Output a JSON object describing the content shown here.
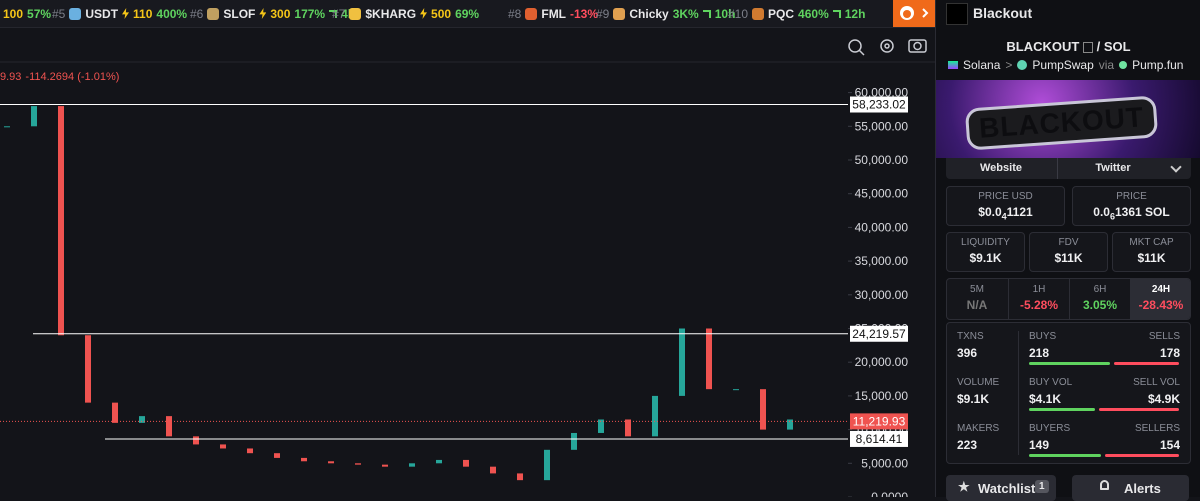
{
  "ticker": [
    {
      "boost": "100",
      "change": "57%"
    },
    {
      "rank": "#5",
      "name": "USDT",
      "boost": "110",
      "change": "400%"
    },
    {
      "rank": "#6",
      "name": "SLOF",
      "boost": "300",
      "change": "177%",
      "age": "4h"
    },
    {
      "rank": "#7",
      "name": "$KHARG",
      "boost": "500",
      "change": "69%"
    },
    {
      "rank": "#8",
      "name": "FML",
      "change": "-13%"
    },
    {
      "rank": "#9",
      "name": "Chicky",
      "change": "3K%",
      "age": "10h"
    },
    {
      "rank": "#10",
      "name": "PQC",
      "change": "460%",
      "age": "12h"
    }
  ],
  "chart": {
    "type": "candlestick",
    "legend_last": "9.93",
    "legend_change": "-114.2694 (-1.01%)",
    "ylim": [
      0,
      64540
    ],
    "yticks": [
      {
        "value": 0,
        "label": "0.0000"
      },
      {
        "value": 5000,
        "label": "5,000.00"
      },
      {
        "value": 10000,
        "label": "10,000.00"
      },
      {
        "value": 15000,
        "label": "15,000.00"
      },
      {
        "value": 20000,
        "label": "20,000.00"
      },
      {
        "value": 25000,
        "label": "25,000.00"
      },
      {
        "value": 30000,
        "label": "30,000.00"
      },
      {
        "value": 35000,
        "label": "35,000.00"
      },
      {
        "value": 40000,
        "label": "40,000.00"
      },
      {
        "value": 45000,
        "label": "45,000.00"
      },
      {
        "value": 50000,
        "label": "50,000.00"
      },
      {
        "value": 55000,
        "label": "55,000.00"
      },
      {
        "value": 60000,
        "label": "60,000.00"
      }
    ],
    "values": [
      55000,
      58000,
      24000,
      14000,
      11000,
      12000,
      9000,
      7800,
      7200,
      6500,
      5800,
      5300,
      5000,
      4800,
      4500,
      5000,
      5500,
      4500,
      3500,
      2500,
      7000,
      9500,
      11500,
      9000,
      15000,
      25000,
      16000,
      16000,
      10000,
      11500
    ],
    "up_color": "#26a69a",
    "down_color": "#ef5350",
    "price_lines": [
      {
        "value": 58233.02,
        "label": "58,233.02"
      },
      {
        "value": 24219.57,
        "label": "24,219.57"
      },
      {
        "value": 8614.41,
        "label": "8,614.41"
      }
    ],
    "current_price": {
      "value": 11219.93,
      "label": "11,219.93"
    }
  },
  "token": {
    "name": "Blackout",
    "symbol": "BLACKOUT",
    "sep": "/",
    "quote": "SOL",
    "chain": "Solana",
    "arrow": ">",
    "dex": "PumpSwap",
    "via": "via",
    "launchpad": "Pump.fun",
    "banner": "BLACKOUT"
  },
  "links": [
    "Website",
    "Twitter"
  ],
  "price_usd": {
    "label": "PRICE USD",
    "prefix": "$0.0",
    "zeros": "4",
    "digits": "1121"
  },
  "price": {
    "label": "PRICE",
    "prefix": "0.0",
    "zeros": "6",
    "digits": "1361 SOL"
  },
  "metrics": [
    {
      "label": "LIQUIDITY",
      "value": "$9.1K"
    },
    {
      "label": "FDV",
      "value": "$11K"
    },
    {
      "label": "MKT CAP",
      "value": "$11K"
    }
  ],
  "periods": [
    {
      "label": "5M",
      "value": "N/A"
    },
    {
      "label": "1H",
      "value": "-5.28%"
    },
    {
      "label": "6H",
      "value": "3.05%"
    },
    {
      "label": "24H",
      "value": "-28.43%"
    }
  ],
  "selected_period": 3,
  "stats": {
    "txns": {
      "label": "TXNS",
      "value": 396
    },
    "buys": {
      "label": "BUYS",
      "value": 218
    },
    "sells": {
      "label": "SELLS",
      "value": 178
    },
    "volume": {
      "label": "VOLUME",
      "value": 9100,
      "value_label": "$9.1K"
    },
    "buy_vol": {
      "label": "BUY VOL",
      "value": 4100,
      "value_label": "$4.1K"
    },
    "sell_vol": {
      "label": "SELL VOL",
      "value": 4900,
      "value_label": "$4.9K"
    },
    "makers": {
      "label": "MAKERS",
      "value": 223
    },
    "buyers": {
      "label": "BUYERS",
      "value": 149
    },
    "sellers": {
      "label": "SELLERS",
      "value": 154
    }
  },
  "actions": {
    "watchlist": "Watchlist",
    "watch_count": "1",
    "alerts": "Alerts"
  }
}
